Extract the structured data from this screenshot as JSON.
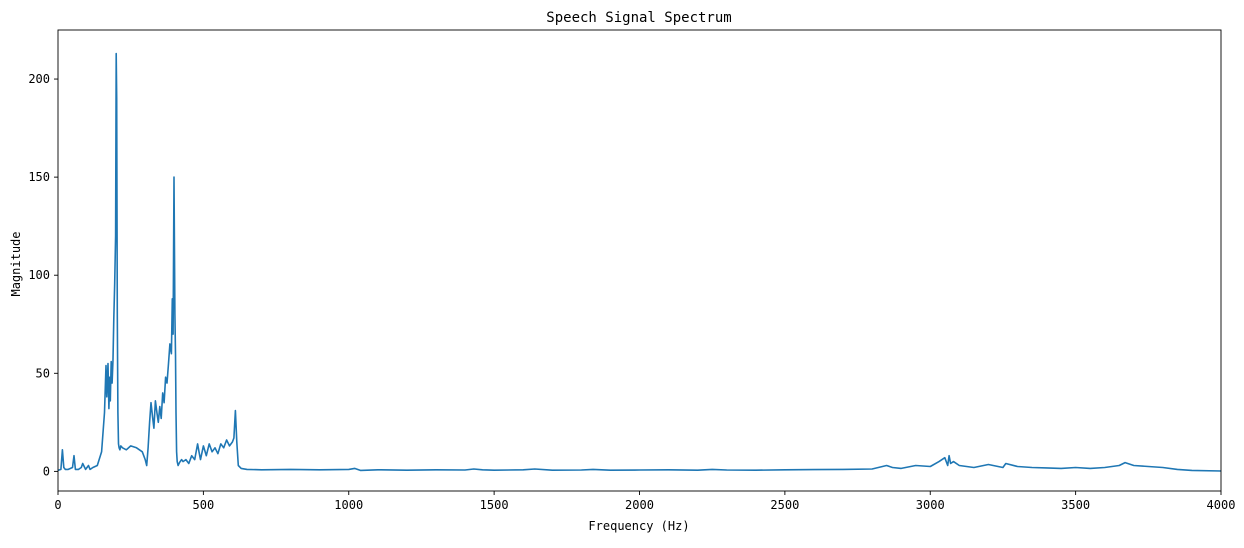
{
  "chart_data": {
    "type": "line",
    "title": "Speech Signal Spectrum",
    "xlabel": "Frequency (Hz)",
    "ylabel": "Magnitude",
    "xlim": [
      0,
      4000
    ],
    "ylim": [
      -10,
      225
    ],
    "xticks": [
      0,
      500,
      1000,
      1500,
      2000,
      2500,
      3000,
      3500,
      4000
    ],
    "yticks": [
      0,
      50,
      100,
      150,
      200
    ],
    "grid": false,
    "legend": "none",
    "series": [
      {
        "color": "#1f77b4",
        "x": [
          0,
          10,
          15,
          20,
          25,
          35,
          50,
          55,
          60,
          70,
          80,
          85,
          95,
          105,
          110,
          120,
          135,
          150,
          160,
          165,
          168,
          172,
          175,
          178,
          180,
          183,
          186,
          189,
          192,
          195,
          198,
          200,
          202,
          204,
          206,
          208,
          210,
          213,
          216,
          222,
          235,
          250,
          270,
          290,
          300,
          305,
          310,
          315,
          320,
          325,
          330,
          335,
          340,
          345,
          350,
          355,
          360,
          365,
          370,
          375,
          380,
          385,
          390,
          393,
          396,
          399,
          402,
          404,
          406,
          408,
          410,
          413,
          416,
          420,
          425,
          430,
          440,
          450,
          460,
          470,
          480,
          485,
          490,
          500,
          510,
          520,
          530,
          540,
          550,
          560,
          570,
          580,
          590,
          600,
          605,
          610,
          615,
          620,
          630,
          650,
          700,
          800,
          900,
          1000,
          1020,
          1040,
          1100,
          1200,
          1300,
          1400,
          1430,
          1460,
          1500,
          1600,
          1640,
          1700,
          1800,
          1840,
          1900,
          2000,
          2100,
          2200,
          2250,
          2300,
          2400,
          2500,
          2600,
          2700,
          2800,
          2850,
          2870,
          2900,
          2950,
          3000,
          3030,
          3050,
          3060,
          3065,
          3070,
          3080,
          3100,
          3150,
          3200,
          3250,
          3260,
          3300,
          3350,
          3400,
          3450,
          3500,
          3550,
          3600,
          3650,
          3670,
          3700,
          3750,
          3800,
          3850,
          3900,
          4000
        ],
        "y": [
          0.5,
          1,
          11,
          2,
          1,
          1,
          2,
          8,
          1,
          1,
          2,
          4,
          1,
          3,
          1,
          2,
          3,
          10,
          30,
          54,
          38,
          55,
          32,
          48,
          36,
          56,
          45,
          57,
          78,
          96,
          120,
          213,
          190,
          80,
          30,
          14,
          12,
          11,
          13,
          12,
          11,
          13,
          12,
          10,
          6,
          3,
          12,
          25,
          35,
          28,
          22,
          36,
          30,
          25,
          33,
          27,
          40,
          35,
          48,
          45,
          55,
          65,
          60,
          88,
          70,
          150,
          80,
          60,
          30,
          10,
          5,
          3,
          4,
          5,
          6,
          5,
          6,
          4,
          8,
          6,
          14,
          10,
          6,
          13,
          8,
          14,
          10,
          12,
          9,
          14,
          12,
          16,
          13,
          15,
          17,
          31,
          15,
          3,
          1.5,
          1,
          0.8,
          1,
          0.8,
          1,
          1.5,
          0.5,
          0.8,
          0.6,
          0.8,
          0.7,
          1.2,
          0.8,
          0.6,
          0.8,
          1.2,
          0.6,
          0.7,
          1,
          0.6,
          0.7,
          0.8,
          0.6,
          1,
          0.7,
          0.6,
          0.8,
          0.9,
          1,
          1.2,
          3,
          2,
          1.5,
          3,
          2.5,
          5,
          7,
          3,
          8,
          4,
          5,
          3,
          2,
          3.5,
          2,
          4,
          2.5,
          2,
          1.8,
          1.5,
          2,
          1.5,
          2,
          3,
          4.5,
          3,
          2.5,
          2,
          1,
          0.5,
          0.2
        ]
      }
    ]
  }
}
